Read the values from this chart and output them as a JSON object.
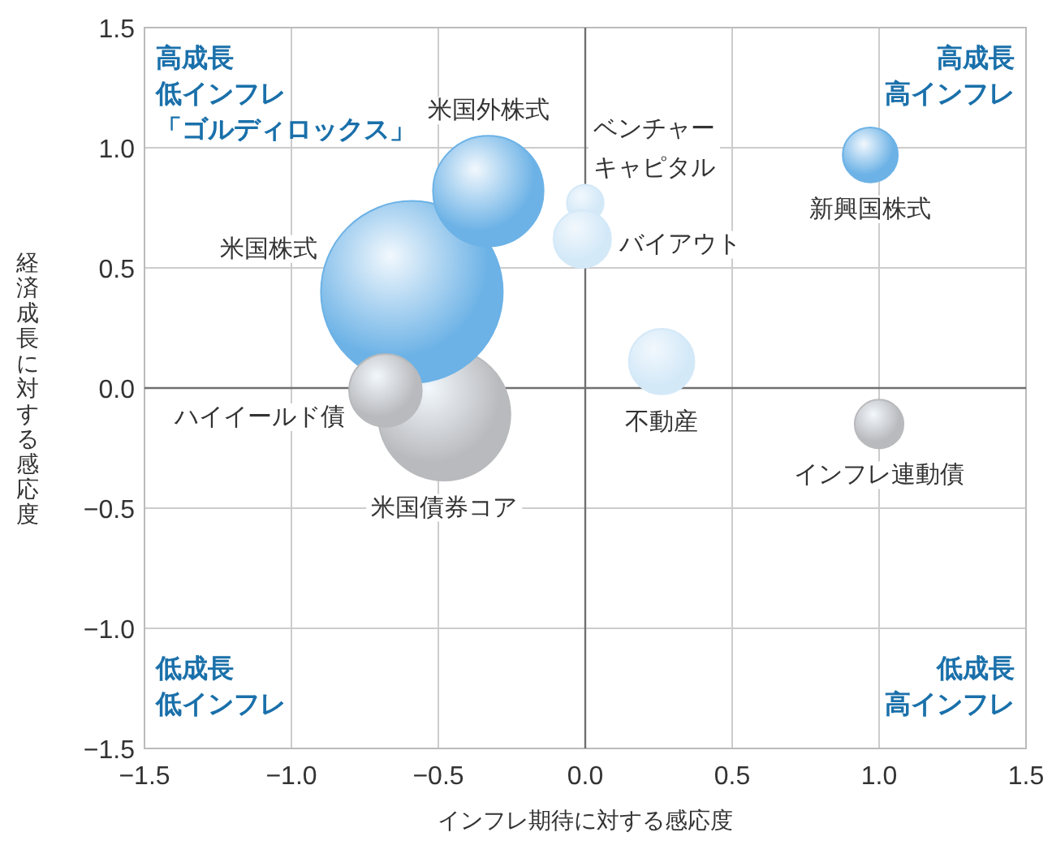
{
  "chart_data": {
    "type": "bubble",
    "xlabel": "インフレ期待に対する感応度",
    "ylabel": "経済成長に対する感応度",
    "xlim": [
      -1.5,
      1.5
    ],
    "ylim": [
      -1.5,
      1.5
    ],
    "xticks": [
      {
        "value": -1.5,
        "label": "−1.5"
      },
      {
        "value": -1,
        "label": "−1.0"
      },
      {
        "value": -0.5,
        "label": "−0.5"
      },
      {
        "value": 0,
        "label": "0.0"
      },
      0.5,
      {
        "value": 1,
        "label": "1.0"
      },
      {
        "value": 1.5,
        "label": "1.5"
      }
    ],
    "yticks": [
      {
        "value": -1.5,
        "label": "−1.5"
      },
      {
        "value": -1,
        "label": "−1.0"
      },
      {
        "value": -0.5,
        "label": "−0.5"
      },
      {
        "value": 0,
        "label": "0.0"
      },
      0.5,
      {
        "value": 1,
        "label": "1.0"
      },
      {
        "value": 1.5,
        "label": "1.5"
      }
    ],
    "grid": true,
    "series": [
      {
        "name": "米国債券コア",
        "color": "#b9babd",
        "x": [
          -0.48
        ],
        "values": [
          -0.11
        ],
        "sizes": [
          0.53
        ]
      },
      {
        "name": "米国株式",
        "color": "#6cb2e6",
        "x": [
          -0.59
        ],
        "values": [
          0.4
        ],
        "sizes": [
          1
        ]
      },
      {
        "name": "米国外株式",
        "color": "#6cb2e6",
        "x": [
          -0.33
        ],
        "values": [
          0.82
        ],
        "sizes": [
          0.37
        ]
      },
      {
        "name": "ハイイールド債",
        "color": "#b9babd",
        "x": [
          -0.68
        ],
        "values": [
          -0.01
        ],
        "sizes": [
          0.16
        ]
      },
      {
        "name": "ベンチャーキャピタル",
        "color": "#d4e9f8",
        "x": [
          0
        ],
        "values": [
          0.77
        ],
        "sizes": [
          0.041
        ]
      },
      {
        "name": "バイアウト",
        "color": "#d4e9f8",
        "x": [
          -0.01
        ],
        "values": [
          0.62
        ],
        "sizes": [
          0.1
        ]
      },
      {
        "name": "新興国株式",
        "color": "#6cb2e6",
        "x": [
          0.97
        ],
        "values": [
          0.97
        ],
        "sizes": [
          0.092
        ]
      },
      {
        "name": "不動産",
        "color": "#d4e9f8",
        "x": [
          0.26
        ],
        "values": [
          0.11
        ],
        "sizes": [
          0.13
        ]
      },
      {
        "name": "インフレ連動債",
        "color": "#b9babd",
        "x": [
          1.0
        ],
        "values": [
          -0.15
        ],
        "sizes": [
          0.072
        ]
      }
    ],
    "annotations": [
      "高成長低インフレ「ゴルディロックス」",
      "高成長高インフレ",
      "低成長低インフレ",
      "低成長高インフレ"
    ]
  }
}
